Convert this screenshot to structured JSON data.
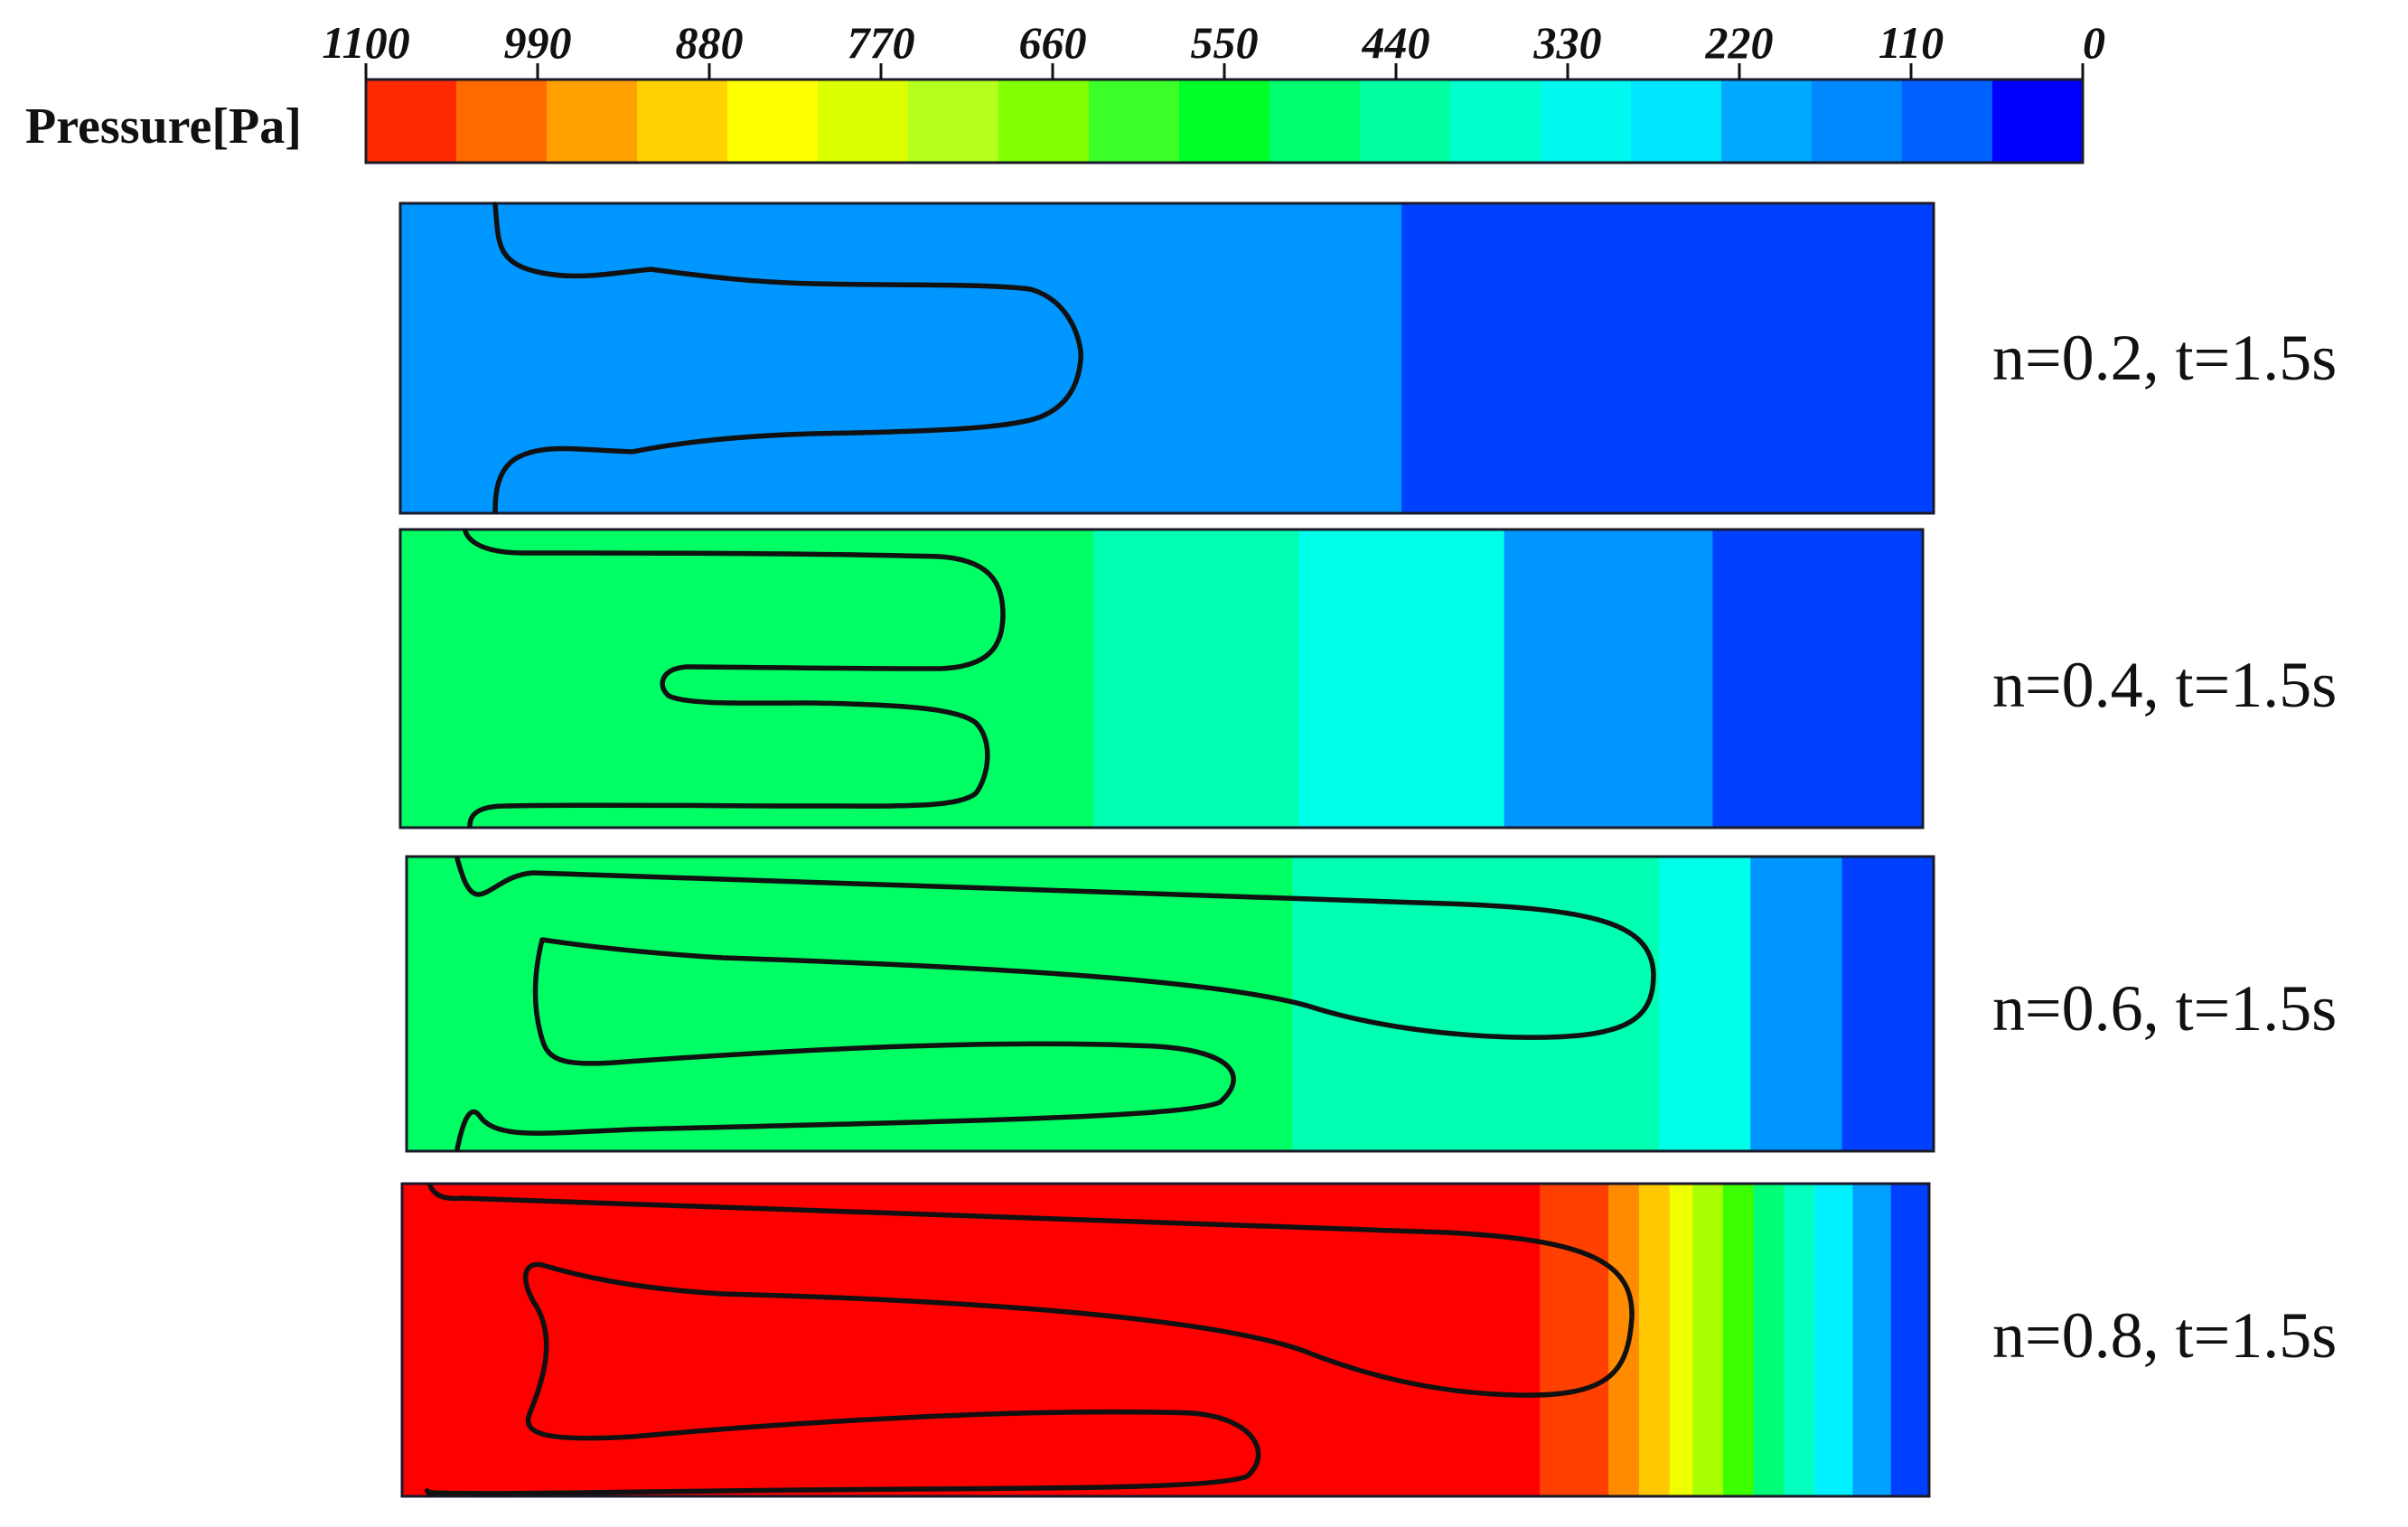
{
  "legend": {
    "title": "Pressure[Pa]",
    "ticks": [
      "1100",
      "990",
      "880",
      "770",
      "660",
      "550",
      "440",
      "330",
      "220",
      "110",
      "0"
    ],
    "colors": [
      "#ff2a00",
      "#ff6a00",
      "#ffa000",
      "#ffd200",
      "#ffff00",
      "#dcff00",
      "#b4ff1e",
      "#82ff00",
      "#3cff28",
      "#00ff28",
      "#00ff6e",
      "#00ffa0",
      "#00ffcc",
      "#00f8f0",
      "#00e6ff",
      "#00aaff",
      "#0088ff",
      "#0060ff",
      "#0000ff"
    ]
  },
  "panels": [
    {
      "label": "n=0.2,   t=1.5s",
      "bands": [
        {
          "color": "#0096ff",
          "until": 0.653
        },
        {
          "color": "#0040ff",
          "until": 1.0
        }
      ]
    },
    {
      "label": "n=0.4,   t=1.5s",
      "bands": [
        {
          "color": "#00ff64",
          "until": 0.455
        },
        {
          "color": "#00ffb0",
          "until": 0.59
        },
        {
          "color": "#00ffe8",
          "until": 0.725
        },
        {
          "color": "#0096ff",
          "until": 0.862
        },
        {
          "color": "#0040ff",
          "until": 1.0
        }
      ]
    },
    {
      "label": "n=0.6,   t=1.5s",
      "bands": [
        {
          "color": "#00ff64",
          "until": 0.58
        },
        {
          "color": "#00ffb0",
          "until": 0.82
        },
        {
          "color": "#00ffe8",
          "until": 0.88
        },
        {
          "color": "#0096ff",
          "until": 0.94
        },
        {
          "color": "#0040ff",
          "until": 1.0
        }
      ]
    },
    {
      "label": "n=0.8,   t=1.5s",
      "bands": [
        {
          "color": "#ff0000",
          "until": 0.745
        },
        {
          "color": "#ff4000",
          "until": 0.79
        },
        {
          "color": "#ff8c00",
          "until": 0.81
        },
        {
          "color": "#ffc800",
          "until": 0.83
        },
        {
          "color": "#f0ff00",
          "until": 0.845
        },
        {
          "color": "#aaff00",
          "until": 0.865
        },
        {
          "color": "#3cff00",
          "until": 0.885
        },
        {
          "color": "#00ff78",
          "until": 0.905
        },
        {
          "color": "#00ffc0",
          "until": 0.925
        },
        {
          "color": "#00f0ff",
          "until": 0.95
        },
        {
          "color": "#00a0ff",
          "until": 0.975
        },
        {
          "color": "#0040ff",
          "until": 1.0
        }
      ]
    }
  ]
}
